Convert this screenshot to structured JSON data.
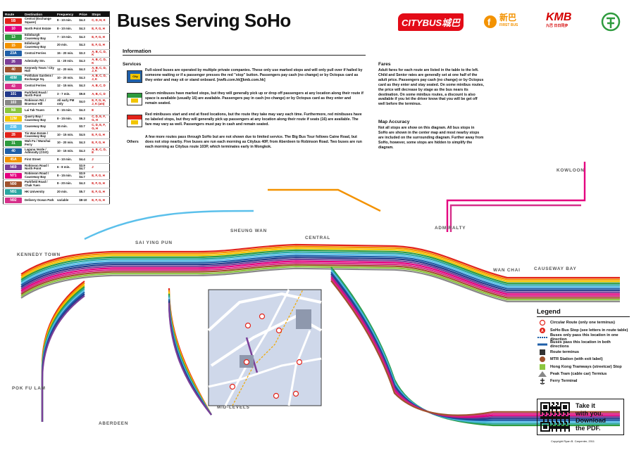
{
  "title": "Buses Serving SoHo",
  "logos": {
    "citybus": "CITYBUS城巴",
    "firstbus_cn": "新巴",
    "firstbus_en": "FIRST BUS",
    "kmb": "KMB",
    "kmb_cn": "九巴 日日同步"
  },
  "colors": {
    "red": "#e2231a",
    "green": "#2e9b3e",
    "blue": "#1f5fa8",
    "orange": "#f39200",
    "purple": "#7b3f98",
    "pink": "#e4007f",
    "teal": "#2ba7a1",
    "yellow": "#f2c500",
    "brown": "#a0522d",
    "lime": "#8cc63f",
    "magenta": "#d62f8a",
    "navy": "#233a8b",
    "sky": "#5bc0eb",
    "grey": "#888888"
  },
  "route_table": {
    "headers": [
      "Route",
      "Destination",
      "Frequency",
      "Price",
      "Stops"
    ],
    "rows": [
      {
        "route": "5B",
        "color": "#e2231a",
        "dest": "Central (Exchange Square)",
        "freq": "8 - 10 min.",
        "price": "$4.3",
        "stops": "C, D, H, K"
      },
      {
        "route": "10",
        "color": "#e4007f",
        "dest": "North Point Estate",
        "freq": "8 - 10 min.",
        "price": "$4.3",
        "stops": "E, F, G, H"
      },
      {
        "route": "13",
        "color": "#2e9b3e",
        "dest": "Edinburgh Causeway Bay",
        "freq": "7 - 10 min.",
        "price": "$4.3",
        "stops": "E, F, G, H"
      },
      {
        "route": "15",
        "color": "#f39200",
        "dest": "Edinburgh Causeway Bay",
        "freq": "20 min.",
        "price": "$4.3",
        "stops": "E, F, G, H"
      },
      {
        "route": "23A",
        "color": "#1f5fa8",
        "dest": "Central Ferries",
        "freq": "15 - 20 min.",
        "price": "$3.3",
        "stops": "A, B, C, D, K"
      },
      {
        "route": "26",
        "color": "#7b3f98",
        "dest": "Admiralty Stn.",
        "freq": "11 - 20 min.",
        "price": "$4.3",
        "stops": "A, B, C, D, K"
      },
      {
        "route": "40",
        "color": "#a0522d",
        "dest": "Kennedy Town / City Hall",
        "freq": "12 - 20 min.",
        "price": "$4.3",
        "stops": "A, B, C, D, J, K"
      },
      {
        "route": "40M",
        "color": "#2ba7a1",
        "dest": "Pokfulam Gardens / Exchange Sq.",
        "freq": "10 - 20 min.",
        "price": "$4.3",
        "stops": "A, B, C, D, J, K"
      },
      {
        "route": "43",
        "color": "#d62f8a",
        "dest": "Central Ferries",
        "freq": "12 - 15 min.",
        "price": "$4.3",
        "stops": "A, B, C, D"
      },
      {
        "route": "101",
        "color": "#233a8b",
        "dest": "Parkfield Road / North Point",
        "freq": "3 - 7 min.",
        "price": "$9.8",
        "stops": "A, B, C, D"
      },
      {
        "route": "103",
        "color": "#888888",
        "dest": "Robinson Rd. / Braemar Hill",
        "freq": "All early PM only",
        "price": "$4.0",
        "stops": "E, F, G, H, J, K (am)"
      },
      {
        "route": "N8",
        "color": "#8cc63f",
        "dest": "Lai Tak Tsuen",
        "freq": "8 - 15 min.",
        "price": "$4.3",
        "stops": "E"
      },
      {
        "route": "12M",
        "color": "#f2c500",
        "dest": "Quarry Bay / Causeway Bay",
        "freq": "8 - 15 min.",
        "price": "$6.3",
        "stops": "C, D, E, F, G, H"
      },
      {
        "route": "23B",
        "color": "#5bc0eb",
        "dest": "Causeway Bay",
        "freq": "15 min.",
        "price": "$3.7",
        "stops": "C, D, E, F, G, H"
      },
      {
        "route": "28",
        "color": "#e2231a",
        "dest": "Tin Wan Estate / Causeway Bay",
        "freq": "10 - 15 min.",
        "price": "$4.5",
        "stops": "E, F, G, H"
      },
      {
        "route": "31",
        "color": "#2e9b3e",
        "dest": "Wah Fu / Wanchai Ferry",
        "freq": "10 - 20 min.",
        "price": "$4.3",
        "stops": "E, F, G, H"
      },
      {
        "route": "40",
        "color": "#1f5fa8",
        "dest": "Laguna Verde / Admiralty (CGO)",
        "freq": "10 - 15 min.",
        "price": "$4.3",
        "stops": "A, B, C, D, E"
      },
      {
        "route": "45A",
        "color": "#f39200",
        "dest": "First Street",
        "freq": "8 - 10 min.",
        "price": "$4.4",
        "stops": "J"
      },
      {
        "route": "N69",
        "color": "#7b3f98",
        "dest": "Robinson Road / North Point",
        "freq": "6 - 8 min.",
        "price": "$3.9 $4.7",
        "stops": "J"
      },
      {
        "route": "N71",
        "color": "#e4007f",
        "dest": "Robinson Road / Causeway Bay",
        "freq": "8 - 15 min.",
        "price": "$3.9 $4.7",
        "stops": "E, F, G, H"
      },
      {
        "route": "N90",
        "color": "#a0522d",
        "dest": "Parkfield Road / Chak Yuen",
        "freq": "8 - 20 min.",
        "price": "$4.3",
        "stops": "E, F, G, H"
      },
      {
        "route": "N91",
        "color": "#2ba7a1",
        "dest": "HK University",
        "freq": "20 min.",
        "price": "$5.7",
        "stops": "E, F, G, H"
      },
      {
        "route": "N92",
        "color": "#d62f8a",
        "dest": "Delivery Ocean Park",
        "freq": "variable",
        "price": "$8-10",
        "stops": "E, F, G, H"
      }
    ]
  },
  "info": {
    "heading": "Information",
    "services_heading": "Services",
    "services": [
      {
        "icon": "city-bus-icon",
        "color": "#1f5fa8",
        "text": "Full-sized buses are operated by multiple private companies. These only use marked stops and will only pull over if hailed by someone waiting or if a passenger presses the red \"stop\" button. Passengers pay cash (no change) or by Octopus card as they enter and may sit or stand onboard. [nwfb.com.hk][kmb.com.hk]"
      },
      {
        "icon": "green-minibus-icon",
        "color": "#2e9b3e",
        "text": "Green minibuses have marked stops, but they will generally pick up or drop off passengers at any location along their route if space is available (usually 16) are available. Passengers pay in cash (no change) or by Octopus card as they enter and remain seated."
      },
      {
        "icon": "red-minibus-icon",
        "color": "#e2231a",
        "text": "Red minibuses start and end at fixed locations, but the route they take may vary each time. Furthermore, red minibuses have no labeled stops, but they will generally pick up passengers at any location along their route if seats (16) are available. The fare may vary as well. Passengers must pay in cash and remain seated."
      }
    ],
    "others_label": "Others",
    "others_text": "A few more routes pass through SoHo but are not shown due to limited service. The Big Bus Tour follows Caine Road, but does not stop nearby. Five buses are run each morning as Citybus 40P, from Aberdeen to Robinson Road. Two buses are run each morning as Citybus route 103P, which terminates early in Mongkok.",
    "fares_heading": "Fares",
    "fares_text": "Adult fares for each route are listed in the table to the left. Child and Senior rates are generally set at one half of the adult price. Passengers pay cash (no change) or by Octopus card as they enter and stay seated. On some minibus routes, the price will decrease by stage as the bus nears its destination. On some minibus routes, a discount is also available if you let the driver know that you will be get off well before the terminus.",
    "accuracy_heading": "Map Accuracy",
    "accuracy_text": "Not all stops are show on this diagram. All bus stops in SoHo are shown in the center map and most nearby stops are included on the surrounding diagram. Further away from SoHo, however, some stops are hidden to simplify the diagram."
  },
  "areas": [
    "KENNEDY TOWN",
    "SAI YING PUN",
    "SHEUNG WAN",
    "CENTRAL",
    "ADMIRALTY",
    "WAN CHAI",
    "CAUSEWAY BAY",
    "KOWLOON",
    "POK FU LAM",
    "ABERDEEN",
    "MID-LEVELS"
  ],
  "legend": {
    "title": "Legend",
    "items": [
      {
        "icon": "circular-route-icon",
        "label": "Circular Route (only one terminus)"
      },
      {
        "icon": "soho-stop-icon",
        "label": "SoHo Bus Stop (see letters in route table)"
      },
      {
        "icon": "one-direction-icon",
        "label": "Buses only pass this location in one direction"
      },
      {
        "icon": "both-directions-icon",
        "label": "Buses pass this location in both directions"
      },
      {
        "icon": "route-terminus-icon",
        "label": "Route terminus"
      },
      {
        "icon": "mtr-station-icon",
        "label": "MTR Station (with exit label)"
      },
      {
        "icon": "tram-stop-icon",
        "label": "Hong Kong Tramways (streetcar) Stop"
      },
      {
        "icon": "peak-tram-icon",
        "label": "Peak Tram (cable car) Termius"
      },
      {
        "icon": "ferry-terminal-icon",
        "label": "Ferry Terminal"
      }
    ]
  },
  "qr": {
    "line1": "Take it",
    "line2": "with you.",
    "line3": "Download",
    "line4": "the PDF."
  },
  "copyright": "Copyright Ryan B. Carpenter, 2011"
}
